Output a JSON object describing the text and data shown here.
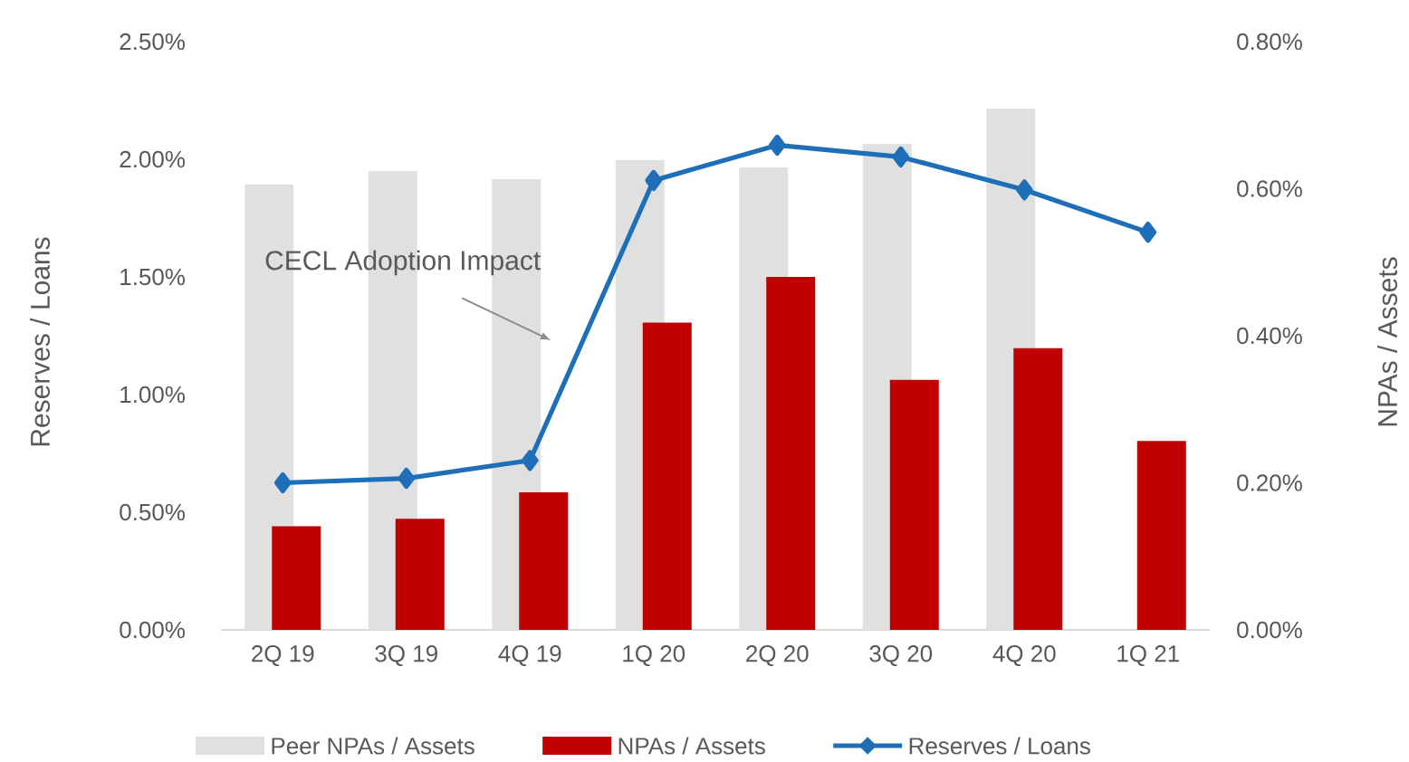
{
  "chart_data": {
    "type": "bar",
    "categories": [
      "2Q 19",
      "3Q 19",
      "4Q 19",
      "1Q 20",
      "2Q 20",
      "3Q 20",
      "4Q 20",
      "1Q 21"
    ],
    "series": [
      {
        "name": "Peer NPAs / Assets",
        "axis": "y2",
        "color": "#e0e0e0",
        "values": [
          0.606,
          0.624,
          0.613,
          0.639,
          0.629,
          0.661,
          0.709,
          null
        ]
      },
      {
        "name": "NPAs / Assets",
        "axis": "y2",
        "color": "#c00000",
        "values": [
          0.141,
          0.151,
          0.187,
          0.418,
          0.48,
          0.34,
          0.383,
          0.257
        ]
      },
      {
        "name": "Reserves / Loans",
        "type": "line",
        "axis": "y",
        "color": "#1f6fb8",
        "marker": "diamond",
        "values": [
          0.625,
          0.644,
          0.72,
          1.91,
          2.06,
          2.01,
          1.87,
          1.69
        ]
      }
    ],
    "ylabel": "Reserves / Loans",
    "y2label": "NPAs / Assets",
    "ylim": [
      0,
      2.5
    ],
    "yticks": [
      {
        "value": 0,
        "label": "0.00%"
      },
      {
        "value": 0.5,
        "label": "0.50%"
      },
      {
        "value": 1,
        "label": "1.00%"
      },
      {
        "value": 1.5,
        "label": "1.50%"
      },
      {
        "value": 2,
        "label": "2.00%"
      },
      {
        "value": 2.5,
        "label": "2.50%"
      }
    ],
    "y2lim": [
      0,
      0.8
    ],
    "y2ticks": [
      {
        "value": 0,
        "label": "0.00%"
      },
      {
        "value": 0.2,
        "label": "0.20%"
      },
      {
        "value": 0.4,
        "label": "0.40%"
      },
      {
        "value": 0.6,
        "label": "0.60%"
      },
      {
        "value": 0.8,
        "label": "0.80%"
      }
    ],
    "annotations": [
      "CECL Adoption Impact"
    ],
    "legend": "bottom",
    "grid": false
  }
}
